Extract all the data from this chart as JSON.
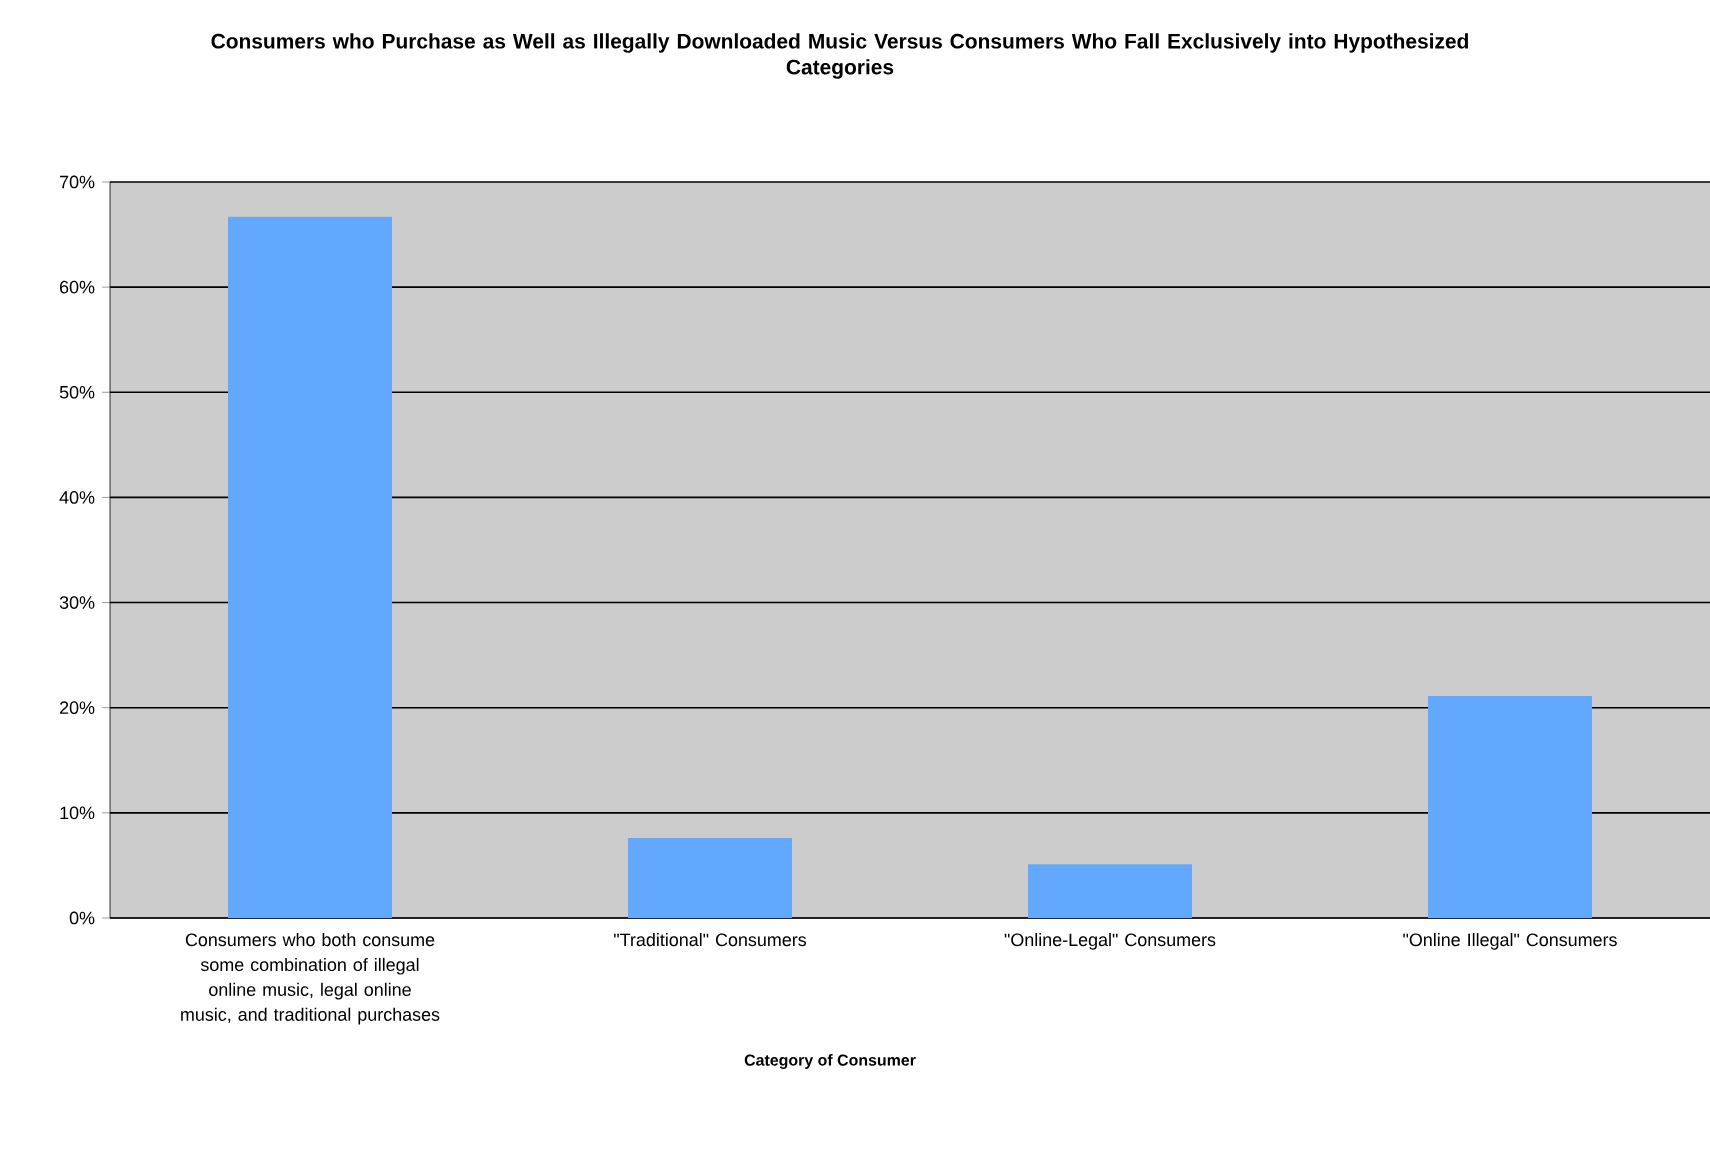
{
  "chart_data": {
    "type": "bar",
    "title": "Consumers who Purchase as Well as Illegally Downloaded Music Versus Consumers Who Fall Exclusively into Hypothesized Categories",
    "xlabel": "Category of Consumer",
    "categories": [
      "Consumers who both consume some combination of illegal online music, legal online music, and traditional purchases",
      "\"Traditional\" Consumers",
      "\"Online-Legal\" Consumers",
      "\"Online Illegal\" Consumers"
    ],
    "values": [
      66.7,
      7.6,
      5.1,
      21.1
    ],
    "color": "#62a8ff",
    "ylim": [
      0,
      70
    ],
    "yticks": [
      {
        "value": 0,
        "label": "0%"
      },
      {
        "value": 10,
        "label": "10%"
      },
      {
        "value": 20,
        "label": "20%"
      },
      {
        "value": 30,
        "label": "30%"
      },
      {
        "value": 40,
        "label": "40%"
      },
      {
        "value": 50,
        "label": "50%"
      },
      {
        "value": 60,
        "label": "60%"
      },
      {
        "value": 70,
        "label": "70%"
      }
    ],
    "grid": "y"
  }
}
